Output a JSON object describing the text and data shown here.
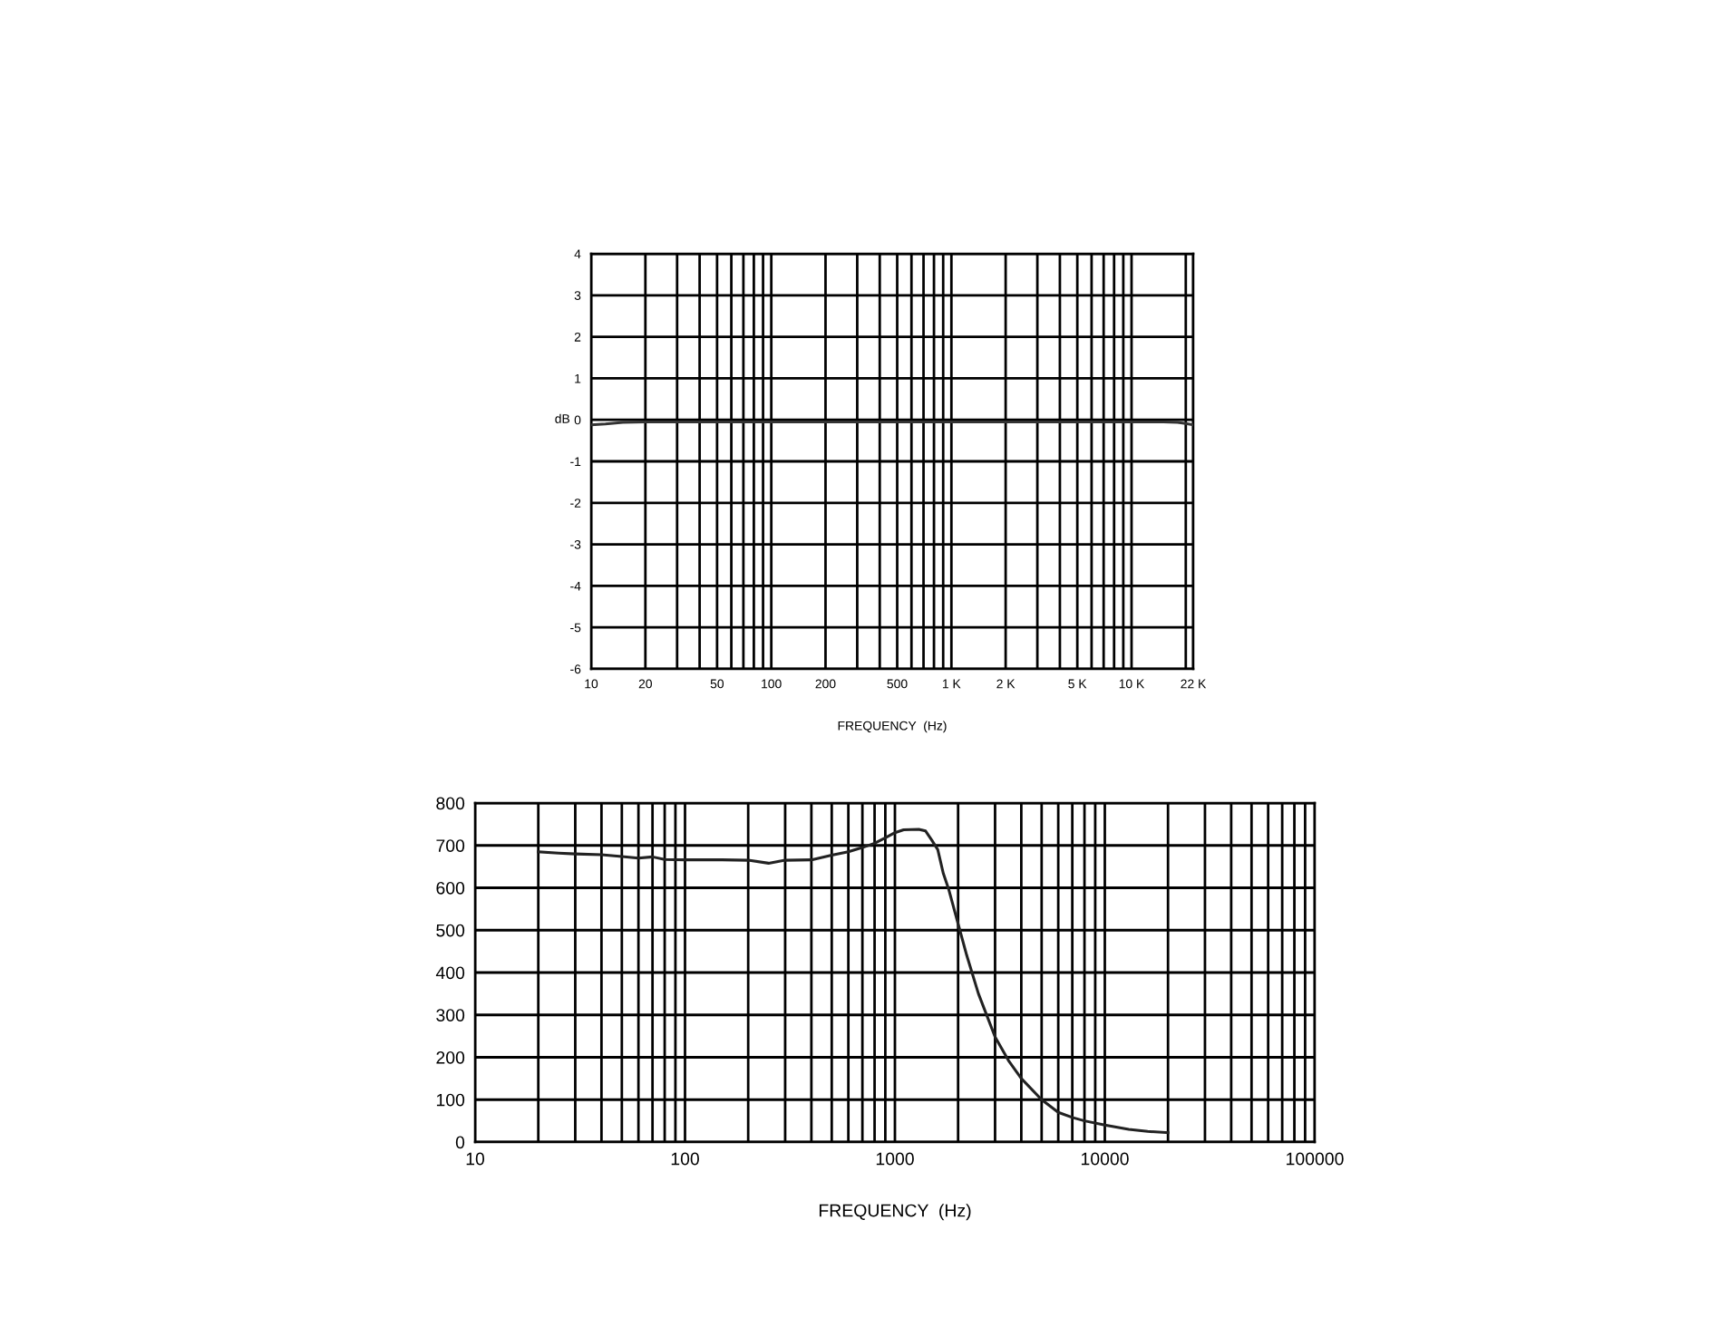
{
  "chart_data": [
    {
      "type": "line",
      "xlabel": "FREQUENCY  (Hz)",
      "ylabel": "dB",
      "log": "x",
      "grid": true,
      "x": [
        10,
        12,
        15,
        20,
        50,
        100,
        1000,
        10000,
        15000,
        18000,
        20000,
        22000
      ],
      "series": [
        {
          "color": "#333333",
          "values": [
            -0.12,
            -0.1,
            -0.06,
            -0.05,
            -0.05,
            -0.05,
            -0.05,
            -0.05,
            -0.05,
            -0.06,
            -0.09,
            -0.12
          ]
        }
      ],
      "xlim": [
        10,
        22000
      ],
      "xticks": [
        10,
        20,
        {
          "value": 30,
          "label": null
        },
        {
          "value": 40,
          "label": null
        },
        50,
        {
          "value": 60,
          "label": null
        },
        {
          "value": 70,
          "label": null
        },
        {
          "value": 80,
          "label": null
        },
        {
          "value": 90,
          "label": null
        },
        100,
        200,
        {
          "value": 300,
          "label": null
        },
        {
          "value": 400,
          "label": null
        },
        500,
        {
          "value": 600,
          "label": null
        },
        {
          "value": 700,
          "label": null
        },
        {
          "value": 800,
          "label": null
        },
        {
          "value": 900,
          "label": null
        },
        {
          "value": 1000,
          "label": "1 K"
        },
        {
          "value": 2000,
          "label": "2 K"
        },
        {
          "value": 3000,
          "label": null
        },
        {
          "value": 4000,
          "label": null
        },
        {
          "value": 5000,
          "label": "5 K"
        },
        {
          "value": 6000,
          "label": null
        },
        {
          "value": 7000,
          "label": null
        },
        {
          "value": 8000,
          "label": null
        },
        {
          "value": 9000,
          "label": null
        },
        {
          "value": 10000,
          "label": "10 K"
        },
        {
          "value": 20000,
          "label": null
        },
        {
          "value": 22000,
          "label": "22 K"
        }
      ],
      "ylim": [
        -6,
        4
      ],
      "yticks": [
        -6,
        -5,
        -4,
        -3,
        -2,
        -1,
        0,
        1,
        2,
        3,
        4
      ]
    },
    {
      "type": "line",
      "xlabel": "FREQUENCY  (Hz)",
      "log": "x",
      "grid": true,
      "x": [
        20,
        25,
        30,
        40,
        50,
        60,
        70,
        80,
        100,
        150,
        200,
        250,
        300,
        400,
        500,
        600,
        700,
        800,
        900,
        1000,
        1100,
        1300,
        1400,
        1500,
        1600,
        1700,
        1800,
        2000,
        2200,
        2500,
        3000,
        3500,
        4000,
        5000,
        6000,
        7000,
        8000,
        10000,
        13000,
        16000,
        20000
      ],
      "series": [
        {
          "color": "#222222",
          "values": [
            685,
            682,
            680,
            678,
            674,
            670,
            673,
            667,
            666,
            666,
            665,
            658,
            665,
            666,
            677,
            685,
            695,
            705,
            718,
            730,
            737,
            738,
            734,
            712,
            690,
            634,
            598,
            515,
            440,
            350,
            248,
            190,
            150,
            100,
            70,
            58,
            50,
            40,
            30,
            25,
            22
          ]
        }
      ],
      "xlim": [
        10,
        100000
      ],
      "xticks": [
        10,
        {
          "value": 20,
          "label": null
        },
        {
          "value": 30,
          "label": null
        },
        {
          "value": 40,
          "label": null
        },
        {
          "value": 50,
          "label": null
        },
        {
          "value": 60,
          "label": null
        },
        {
          "value": 70,
          "label": null
        },
        {
          "value": 80,
          "label": null
        },
        {
          "value": 90,
          "label": null
        },
        100,
        {
          "value": 200,
          "label": null
        },
        {
          "value": 300,
          "label": null
        },
        {
          "value": 400,
          "label": null
        },
        {
          "value": 500,
          "label": null
        },
        {
          "value": 600,
          "label": null
        },
        {
          "value": 700,
          "label": null
        },
        {
          "value": 800,
          "label": null
        },
        {
          "value": 900,
          "label": null
        },
        1000,
        {
          "value": 2000,
          "label": null
        },
        {
          "value": 3000,
          "label": null
        },
        {
          "value": 4000,
          "label": null
        },
        {
          "value": 5000,
          "label": null
        },
        {
          "value": 6000,
          "label": null
        },
        {
          "value": 7000,
          "label": null
        },
        {
          "value": 8000,
          "label": null
        },
        {
          "value": 9000,
          "label": null
        },
        10000,
        {
          "value": 20000,
          "label": null
        },
        {
          "value": 30000,
          "label": null
        },
        {
          "value": 40000,
          "label": null
        },
        {
          "value": 50000,
          "label": null
        },
        {
          "value": 60000,
          "label": null
        },
        {
          "value": 70000,
          "label": null
        },
        {
          "value": 80000,
          "label": null
        },
        {
          "value": 90000,
          "label": null
        },
        100000
      ],
      "ylim": [
        0,
        800
      ],
      "yticks": [
        0,
        100,
        200,
        300,
        400,
        500,
        600,
        700,
        800
      ]
    }
  ]
}
